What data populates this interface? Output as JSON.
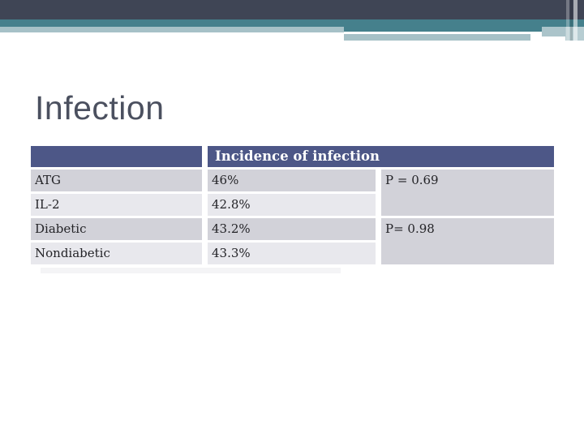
{
  "slide_title": "Infection",
  "table": {
    "header": {
      "spacer": "",
      "label": "Incidence of infection"
    },
    "rows": [
      {
        "label": "ATG",
        "value": "46%",
        "p_value": "P = 0.69"
      },
      {
        "label": "IL-2",
        "value": "42.8%"
      },
      {
        "label": "Diabetic",
        "value": "43.2%",
        "p_value": "P= 0.98"
      },
      {
        "label": "Nondiabetic",
        "value": "43.3%"
      }
    ]
  },
  "colors": {
    "top_bar_dark": "#3f4555",
    "accent_teal": "#45808c",
    "accent_light_teal": "#a6c1c7",
    "table_header_fill": "#4d5787",
    "row_fill_dark": "#d2d2d9",
    "row_fill_light": "#e8e8ed",
    "title_text": "#4b505f",
    "body_text": "#232327",
    "header_text": "#ffffff"
  }
}
